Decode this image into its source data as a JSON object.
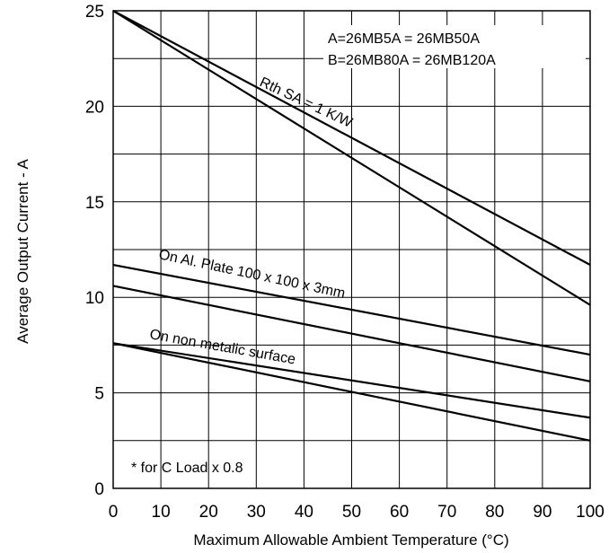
{
  "chart_data": {
    "type": "line",
    "xlabel": "Maximum Allowable Ambient Temperature (°C)",
    "ylabel": "Average Output Current - A",
    "xlim": [
      0,
      100
    ],
    "ylim": [
      0,
      25
    ],
    "x_ticks": [
      "0",
      "10",
      "20",
      "30",
      "40",
      "50",
      "60",
      "70",
      "80",
      "90",
      "100"
    ],
    "y_ticks": [
      "0",
      "5",
      "10",
      "15",
      "20",
      "25"
    ],
    "grid": true,
    "legend": {
      "line_a": "A=26MB5A = 26MB50A",
      "line_b": "B=26MB80A = 26MB120A"
    },
    "annotations": {
      "rth": "Rth SA = 1 K/W",
      "plate": "On Al. Plate 100 x 100 x 3mm",
      "nonmetal": "On non metalic surface",
      "footnote": "* for C Load x 0.8"
    },
    "series": [
      {
        "x": [
          0,
          100
        ],
        "y": [
          25,
          11.7
        ]
      },
      {
        "x": [
          0,
          100
        ],
        "y": [
          25,
          9.6
        ]
      },
      {
        "x": [
          0,
          100
        ],
        "y": [
          11.7,
          7.0
        ]
      },
      {
        "x": [
          0,
          100
        ],
        "y": [
          10.6,
          5.6
        ]
      },
      {
        "x": [
          0,
          100
        ],
        "y": [
          7.6,
          3.7
        ]
      },
      {
        "x": [
          0,
          100
        ],
        "y": [
          7.6,
          2.5
        ]
      }
    ]
  }
}
